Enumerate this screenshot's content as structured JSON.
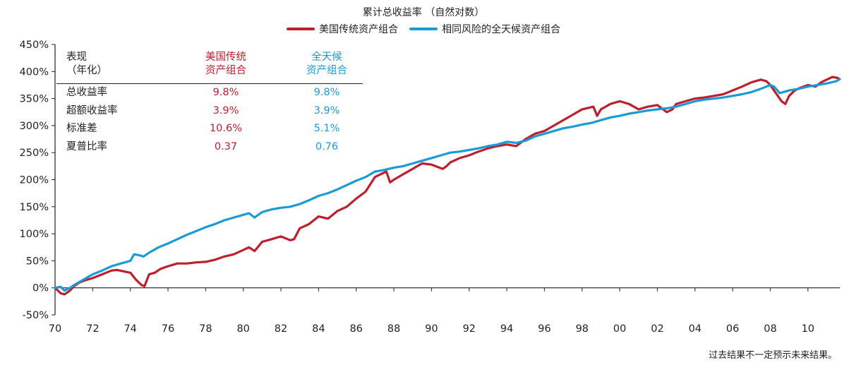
{
  "chart_data": {
    "type": "line",
    "title": "累计总收益率 （自然对数）",
    "y_ticks": [
      "450%",
      "400%",
      "350%",
      "300%",
      "250%",
      "200%",
      "150%",
      "100%",
      "50%",
      "0%",
      "-50%"
    ],
    "x_ticks": [
      "70",
      "72",
      "74",
      "76",
      "78",
      "80",
      "82",
      "84",
      "86",
      "88",
      "90",
      "92",
      "94",
      "96",
      "98",
      "00",
      "02",
      "04",
      "06",
      "08",
      "10"
    ],
    "ylim": [
      -50,
      450
    ],
    "xlim": [
      1970,
      2011.7
    ],
    "grid": false,
    "legend_position": "top-center",
    "series": [
      {
        "name": "美国传统资产组合",
        "color": "#bf1e2e",
        "x": [
          1970,
          1970.3,
          1970.5,
          1970.8,
          1971,
          1971.3,
          1971.6,
          1972,
          1972.5,
          1973,
          1973.3,
          1973.7,
          1974,
          1974.3,
          1974.6,
          1974.75,
          1975,
          1975.3,
          1975.6,
          1976,
          1976.5,
          1977,
          1977.5,
          1978,
          1978.5,
          1979,
          1979.5,
          1980,
          1980.3,
          1980.6,
          1981,
          1981.5,
          1982,
          1982.5,
          1982.7,
          1983,
          1983.5,
          1984,
          1984.5,
          1985,
          1985.5,
          1986,
          1986.5,
          1987,
          1987.6,
          1987.8,
          1988,
          1988.5,
          1989,
          1989.5,
          1990,
          1990.6,
          1990.8,
          1991,
          1991.5,
          1992,
          1992.5,
          1993,
          1993.5,
          1994,
          1994.5,
          1995,
          1995.5,
          1996,
          1996.5,
          1997,
          1997.5,
          1998,
          1998.6,
          1998.8,
          1999,
          1999.5,
          2000,
          2000.5,
          2001,
          2001.5,
          2002,
          2002.5,
          2002.8,
          2003,
          2003.5,
          2004,
          2004.5,
          2005,
          2005.5,
          2006,
          2006.5,
          2007,
          2007.5,
          2007.8,
          2008,
          2008.3,
          2008.6,
          2008.8,
          2009,
          2009.3,
          2009.6,
          2010,
          2010.4,
          2010.7,
          2011,
          2011.3,
          2011.6
        ],
        "y": [
          0,
          -10,
          -12,
          -5,
          3,
          10,
          14,
          18,
          25,
          32,
          33,
          30,
          28,
          15,
          5,
          3,
          25,
          28,
          35,
          40,
          45,
          45,
          47,
          48,
          52,
          58,
          62,
          70,
          75,
          68,
          85,
          90,
          95,
          88,
          90,
          110,
          118,
          132,
          128,
          142,
          150,
          165,
          178,
          205,
          215,
          195,
          200,
          210,
          220,
          230,
          228,
          220,
          225,
          232,
          240,
          245,
          252,
          258,
          262,
          265,
          262,
          275,
          285,
          290,
          300,
          310,
          320,
          330,
          335,
          318,
          330,
          340,
          345,
          340,
          330,
          335,
          338,
          325,
          330,
          340,
          345,
          350,
          352,
          355,
          358,
          365,
          372,
          380,
          385,
          382,
          375,
          360,
          345,
          340,
          355,
          365,
          370,
          375,
          372,
          380,
          385,
          390,
          388
        ]
      },
      {
        "name": "相同风险的全天候资产组合",
        "color": "#1b9ad6",
        "x": [
          1970,
          1970.3,
          1970.5,
          1970.8,
          1971,
          1971.5,
          1972,
          1972.5,
          1973,
          1973.5,
          1974,
          1974.2,
          1974.5,
          1974.7,
          1975,
          1975.5,
          1976,
          1976.5,
          1977,
          1977.5,
          1978,
          1978.5,
          1979,
          1979.5,
          1980,
          1980.3,
          1980.6,
          1981,
          1981.5,
          1982,
          1982.5,
          1983,
          1983.5,
          1984,
          1984.5,
          1985,
          1985.5,
          1986,
          1986.5,
          1987,
          1987.5,
          1988,
          1988.5,
          1989,
          1989.5,
          1990,
          1990.5,
          1991,
          1991.5,
          1992,
          1992.5,
          1993,
          1993.5,
          1994,
          1994.5,
          1995,
          1995.5,
          1996,
          1996.5,
          1997,
          1997.5,
          1998,
          1998.5,
          1999,
          1999.5,
          2000,
          2000.5,
          2001,
          2001.5,
          2002,
          2002.5,
          2003,
          2003.5,
          2004,
          2004.5,
          2005,
          2005.5,
          2006,
          2006.5,
          2007,
          2007.5,
          2008,
          2008.2,
          2008.5,
          2009,
          2009.5,
          2010,
          2010.5,
          2011,
          2011.5,
          2011.7
        ],
        "y": [
          0,
          2,
          -5,
          0,
          5,
          15,
          25,
          32,
          40,
          45,
          50,
          62,
          60,
          58,
          65,
          75,
          82,
          90,
          98,
          105,
          112,
          118,
          125,
          130,
          135,
          138,
          130,
          140,
          145,
          148,
          150,
          155,
          162,
          170,
          175,
          182,
          190,
          198,
          205,
          215,
          218,
          222,
          225,
          230,
          235,
          240,
          245,
          250,
          252,
          255,
          258,
          262,
          265,
          270,
          268,
          272,
          280,
          285,
          290,
          295,
          298,
          302,
          305,
          310,
          315,
          318,
          322,
          325,
          328,
          330,
          332,
          335,
          340,
          345,
          348,
          350,
          352,
          355,
          358,
          362,
          368,
          375,
          372,
          360,
          365,
          368,
          372,
          375,
          378,
          382,
          386
        ]
      }
    ]
  },
  "table": {
    "header": [
      "表现\n（年化）",
      "美国传统\n资产组合",
      "全天候\n资产组合"
    ],
    "rows": [
      [
        "总收益率",
        "9.8%",
        "9.8%"
      ],
      [
        "超额收益率",
        "3.9%",
        "3.9%"
      ],
      [
        "标准差",
        "10.6%",
        "5.1%"
      ],
      [
        "夏普比率",
        "0.37",
        "0.76"
      ]
    ]
  },
  "footnote": "过去结果不一定预示未来结果。"
}
